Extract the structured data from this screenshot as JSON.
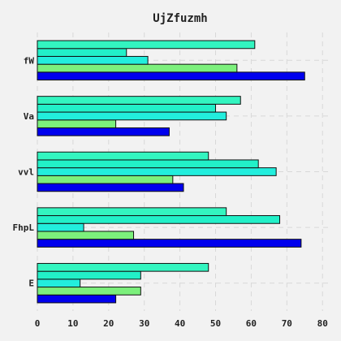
{
  "chart_data": {
    "type": "bar",
    "orientation": "horizontal",
    "title": "UjZfuzmh",
    "xlabel": "",
    "ylabel": "",
    "xlim": [
      0,
      82
    ],
    "x_ticks": [
      0,
      10,
      20,
      30,
      40,
      50,
      60,
      70,
      80
    ],
    "grid": true,
    "categories": [
      "E",
      "FhpL",
      "vvl",
      "Va",
      "fW"
    ],
    "series": [
      {
        "color": "#0000ee",
        "values": [
          22,
          74,
          41,
          37,
          75
        ]
      },
      {
        "color": "#7cf07c",
        "values": [
          29,
          27,
          38,
          22,
          56
        ]
      },
      {
        "color": "#22eedd",
        "values": [
          12,
          13,
          67,
          53,
          31
        ]
      },
      {
        "color": "#22f0c8",
        "values": [
          29,
          68,
          62,
          50,
          25
        ]
      },
      {
        "color": "#33f5c0",
        "values": [
          48,
          53,
          48,
          57,
          61
        ]
      }
    ]
  }
}
